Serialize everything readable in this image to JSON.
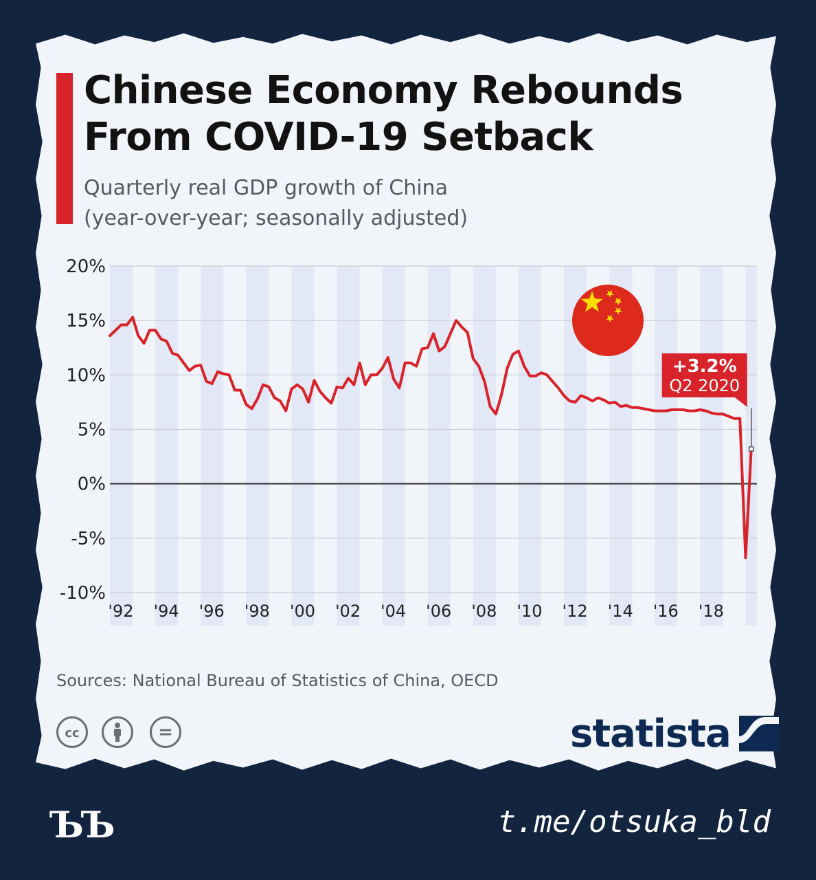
{
  "header": {
    "title_line1": "Chinese Economy Rebounds",
    "title_line2": "From COVID-19 Setback",
    "subtitle_line1": "Quarterly real GDP growth of China",
    "subtitle_line2": "(year-over-year; seasonally adjusted)"
  },
  "footer": {
    "source": "Sources: National Bureau of Statistics of China, OECD",
    "brand": "statista",
    "license_icons": [
      "cc-icon",
      "attribution-icon",
      "no-derivatives-icon"
    ],
    "cc_label": "cc",
    "equals_label": "="
  },
  "watermark": {
    "logo_text": "ЪЪ",
    "channel": "t.me/otsuka_bld"
  },
  "colors": {
    "line": "#d8232a",
    "accent": "#d8232a",
    "band": "#e3e8f6",
    "brand": "#0f2a52"
  },
  "chart_data": {
    "type": "line",
    "title": "Chinese Economy Rebounds From COVID-19 Setback",
    "subtitle": "Quarterly real GDP growth of China (year-over-year; seasonally adjusted)",
    "ylim": [
      -10,
      20
    ],
    "yticks": [
      20,
      15,
      10,
      5,
      0,
      -5,
      -10
    ],
    "ytick_labels": [
      "20%",
      "15%",
      "10%",
      "5%",
      "0%",
      "-5%",
      "-10%"
    ],
    "xlim": [
      1992,
      2020.5
    ],
    "xticks": [
      1992,
      1994,
      1996,
      1998,
      2000,
      2002,
      2004,
      2006,
      2008,
      2010,
      2012,
      2014,
      2016,
      2018
    ],
    "xtick_labels": [
      "'92",
      "'94",
      "'96",
      "'98",
      "'00",
      "'02",
      "'04",
      "'06",
      "'08",
      "'10",
      "'12",
      "'14",
      "'16",
      "'18"
    ],
    "grid": true,
    "shaded_alternate_years": true,
    "points": [
      [
        1992.0,
        13.6
      ],
      [
        1992.25,
        14.1
      ],
      [
        1992.5,
        14.6
      ],
      [
        1992.75,
        14.6
      ],
      [
        1993.0,
        15.3
      ],
      [
        1993.25,
        13.6
      ],
      [
        1993.5,
        12.9
      ],
      [
        1993.75,
        14.1
      ],
      [
        1994.0,
        14.1
      ],
      [
        1994.25,
        13.3
      ],
      [
        1994.5,
        13.1
      ],
      [
        1994.75,
        12.0
      ],
      [
        1995.0,
        11.8
      ],
      [
        1995.25,
        11.1
      ],
      [
        1995.5,
        10.4
      ],
      [
        1995.75,
        10.8
      ],
      [
        1996.0,
        10.9
      ],
      [
        1996.25,
        9.4
      ],
      [
        1996.5,
        9.2
      ],
      [
        1996.75,
        10.3
      ],
      [
        1997.0,
        10.1
      ],
      [
        1997.25,
        10.0
      ],
      [
        1997.5,
        8.6
      ],
      [
        1997.75,
        8.6
      ],
      [
        1998.0,
        7.3
      ],
      [
        1998.25,
        6.9
      ],
      [
        1998.5,
        7.8
      ],
      [
        1998.75,
        9.1
      ],
      [
        1999.0,
        8.9
      ],
      [
        1999.25,
        7.9
      ],
      [
        1999.5,
        7.6
      ],
      [
        1999.75,
        6.7
      ],
      [
        2000.0,
        8.7
      ],
      [
        2000.25,
        9.1
      ],
      [
        2000.5,
        8.7
      ],
      [
        2000.75,
        7.5
      ],
      [
        2001.0,
        9.5
      ],
      [
        2001.25,
        8.5
      ],
      [
        2001.5,
        7.9
      ],
      [
        2001.75,
        7.4
      ],
      [
        2002.0,
        8.9
      ],
      [
        2002.25,
        8.8
      ],
      [
        2002.5,
        9.7
      ],
      [
        2002.75,
        9.1
      ],
      [
        2003.0,
        11.1
      ],
      [
        2003.25,
        9.1
      ],
      [
        2003.5,
        10.0
      ],
      [
        2003.75,
        10.0
      ],
      [
        2004.0,
        10.6
      ],
      [
        2004.25,
        11.6
      ],
      [
        2004.5,
        9.6
      ],
      [
        2004.75,
        8.8
      ],
      [
        2005.0,
        11.1
      ],
      [
        2005.25,
        11.1
      ],
      [
        2005.5,
        10.8
      ],
      [
        2005.75,
        12.4
      ],
      [
        2006.0,
        12.5
      ],
      [
        2006.25,
        13.8
      ],
      [
        2006.5,
        12.2
      ],
      [
        2006.75,
        12.6
      ],
      [
        2007.0,
        13.8
      ],
      [
        2007.25,
        15.0
      ],
      [
        2007.5,
        14.4
      ],
      [
        2007.75,
        13.9
      ],
      [
        2008.0,
        11.5
      ],
      [
        2008.25,
        10.8
      ],
      [
        2008.5,
        9.4
      ],
      [
        2008.75,
        7.1
      ],
      [
        2009.0,
        6.4
      ],
      [
        2009.25,
        8.2
      ],
      [
        2009.5,
        10.6
      ],
      [
        2009.75,
        11.9
      ],
      [
        2010.0,
        12.2
      ],
      [
        2010.25,
        10.8
      ],
      [
        2010.5,
        9.9
      ],
      [
        2010.75,
        9.9
      ],
      [
        2011.0,
        10.2
      ],
      [
        2011.25,
        10.0
      ],
      [
        2011.5,
        9.4
      ],
      [
        2011.75,
        8.8
      ],
      [
        2012.0,
        8.1
      ],
      [
        2012.25,
        7.6
      ],
      [
        2012.5,
        7.5
      ],
      [
        2012.75,
        8.1
      ],
      [
        2013.0,
        7.9
      ],
      [
        2013.25,
        7.6
      ],
      [
        2013.5,
        7.9
      ],
      [
        2013.75,
        7.7
      ],
      [
        2014.0,
        7.4
      ],
      [
        2014.25,
        7.5
      ],
      [
        2014.5,
        7.1
      ],
      [
        2014.75,
        7.2
      ],
      [
        2015.0,
        7.0
      ],
      [
        2015.25,
        7.0
      ],
      [
        2015.5,
        6.9
      ],
      [
        2015.75,
        6.8
      ],
      [
        2016.0,
        6.7
      ],
      [
        2016.25,
        6.7
      ],
      [
        2016.5,
        6.7
      ],
      [
        2016.75,
        6.8
      ],
      [
        2017.0,
        6.8
      ],
      [
        2017.25,
        6.8
      ],
      [
        2017.5,
        6.7
      ],
      [
        2017.75,
        6.7
      ],
      [
        2018.0,
        6.8
      ],
      [
        2018.25,
        6.7
      ],
      [
        2018.5,
        6.5
      ],
      [
        2018.75,
        6.4
      ],
      [
        2019.0,
        6.4
      ],
      [
        2019.25,
        6.2
      ],
      [
        2019.5,
        6.0
      ],
      [
        2019.75,
        6.0
      ],
      [
        2020.0,
        -6.8
      ],
      [
        2020.25,
        3.2
      ]
    ],
    "annotation": {
      "x": 2020.25,
      "y": 3.2,
      "value_label": "+3.2%",
      "period_label": "Q2 2020"
    }
  }
}
